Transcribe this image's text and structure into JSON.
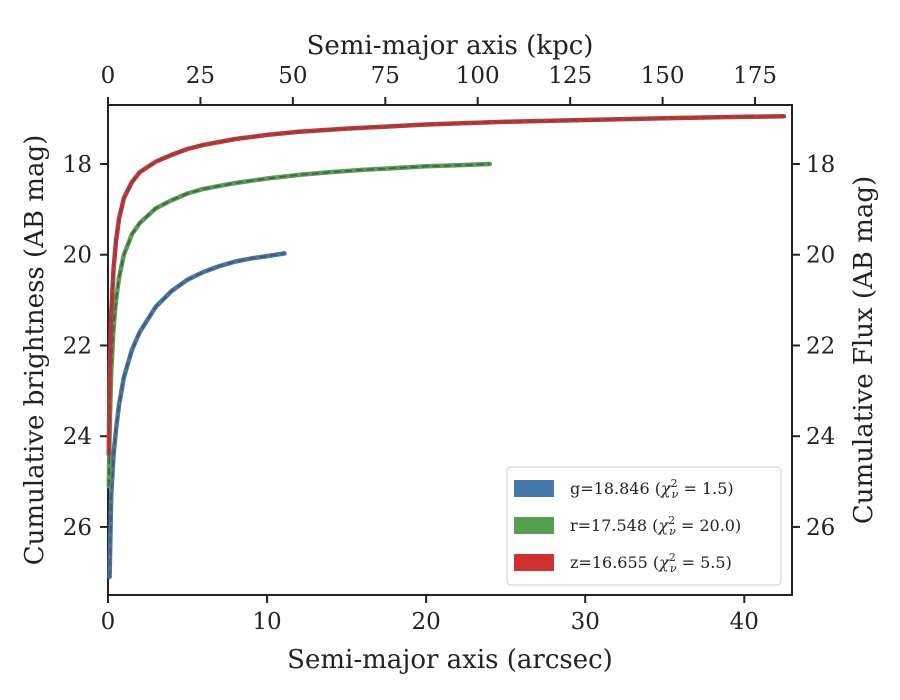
{
  "chart_data": {
    "type": "line",
    "title": "",
    "xlabel": "Semi-major axis (arcsec)",
    "xlabel_top": "Semi-major axis (kpc)",
    "ylabel": "Cumulative brightness (AB mag)",
    "ylabel_right": "Cumulative Flux (AB mag)",
    "xlim": [
      0,
      43
    ],
    "xlim_top": [
      0,
      185
    ],
    "ylim": [
      27.5,
      16.7
    ],
    "y_inverted": true,
    "grid": false,
    "legend_position": "lower-right",
    "x_ticks": [
      "0",
      "10",
      "20",
      "30",
      "40"
    ],
    "x_ticks_top": [
      "0",
      "25",
      "50",
      "75",
      "100",
      "125",
      "150",
      "175"
    ],
    "y_ticks": [
      "18",
      "20",
      "22",
      "24",
      "26"
    ],
    "y_ticks_right": [
      "18",
      "20",
      "22",
      "24",
      "26"
    ],
    "series": [
      {
        "name": "g=18.846",
        "chi2": "1.5",
        "color": "#4477aa",
        "model_line_color": "#555555",
        "x": [
          0.1,
          0.2,
          0.35,
          0.5,
          0.7,
          1.0,
          1.5,
          2.0,
          3.0,
          4.0,
          5.0,
          6.0,
          7.0,
          8.0,
          9.0,
          10.0,
          11.1
        ],
        "y": [
          27.1,
          25.3,
          24.4,
          23.85,
          23.3,
          22.7,
          22.1,
          21.7,
          21.15,
          20.8,
          20.55,
          20.38,
          20.25,
          20.15,
          20.08,
          20.03,
          19.97
        ]
      },
      {
        "name": "r=17.548",
        "chi2": "20.0",
        "color": "#55a050",
        "model_line_color": "#555555",
        "x": [
          0.05,
          0.1,
          0.2,
          0.35,
          0.5,
          0.7,
          1.0,
          1.5,
          2.0,
          3.0,
          4.0,
          5.0,
          6.0,
          8.0,
          10.0,
          12.0,
          14.0,
          16.0,
          18.0,
          20.0,
          22.0,
          24.0
        ],
        "y": [
          25.1,
          23.9,
          22.6,
          21.6,
          21.0,
          20.5,
          20.0,
          19.55,
          19.3,
          18.98,
          18.8,
          18.65,
          18.55,
          18.42,
          18.32,
          18.24,
          18.18,
          18.13,
          18.09,
          18.05,
          18.03,
          18.0
        ]
      },
      {
        "name": "z=16.655",
        "chi2": "5.5",
        "color": "#d03030",
        "model_line_color": "#555555",
        "x": [
          0.05,
          0.1,
          0.2,
          0.35,
          0.5,
          0.7,
          1.0,
          1.5,
          2.0,
          3.0,
          4.0,
          5.0,
          6.0,
          8.0,
          10.0,
          12.0,
          15.0,
          20.0,
          25.0,
          30.0,
          35.0,
          40.0,
          42.5
        ],
        "y": [
          24.4,
          22.7,
          21.3,
          20.3,
          19.7,
          19.2,
          18.75,
          18.4,
          18.18,
          17.95,
          17.8,
          17.67,
          17.58,
          17.45,
          17.36,
          17.29,
          17.22,
          17.13,
          17.07,
          17.03,
          16.99,
          16.96,
          16.95
        ]
      }
    ]
  }
}
